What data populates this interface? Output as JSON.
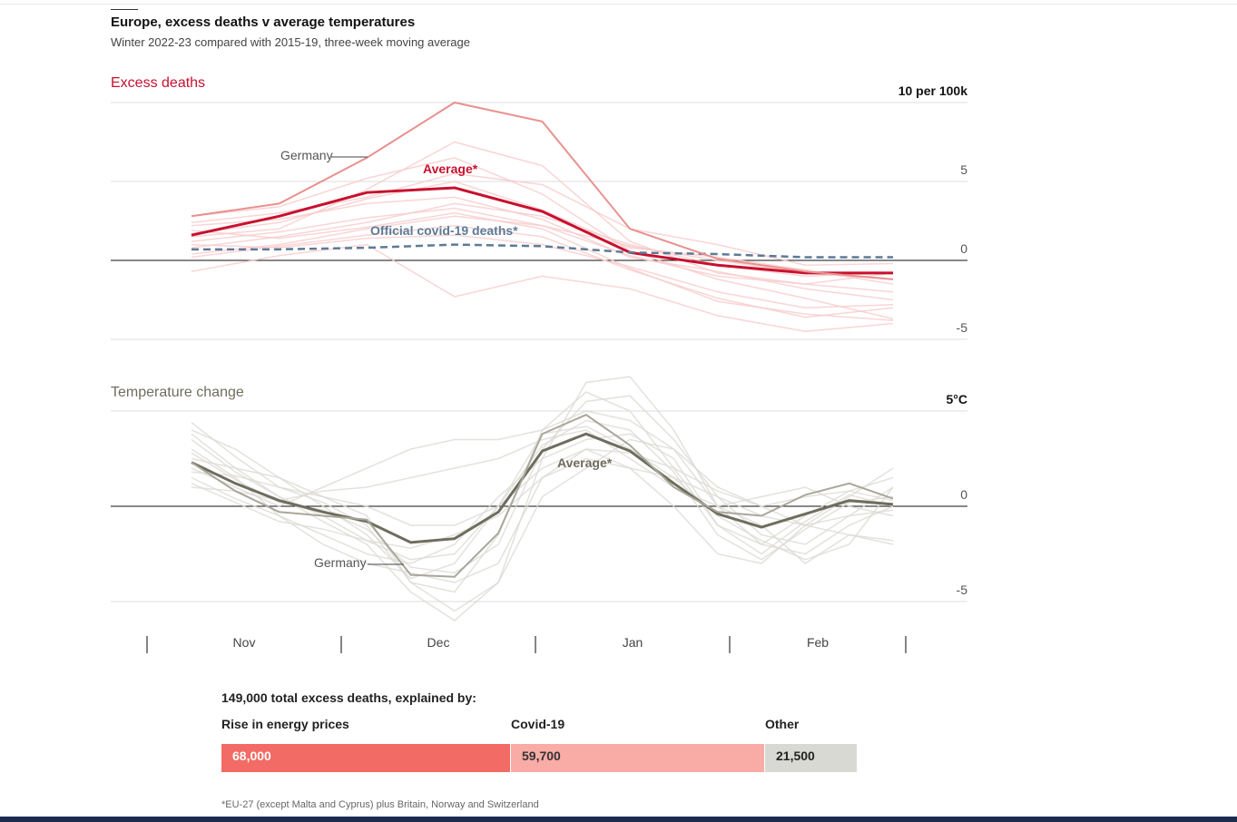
{
  "header": {
    "title": "Europe, excess deaths v average temperatures",
    "subtitle": "Winter 2022-23 compared with 2015-19, three-week moving average"
  },
  "breakdown": {
    "heading": "149,000 total excess deaths, explained by:",
    "segments": [
      {
        "label": "Rise in energy prices",
        "value_text": "68,000",
        "value": 68000,
        "color": "#f26b64",
        "text_color": "#ffffff"
      },
      {
        "label": "Covid-19",
        "value_text": "59,700",
        "value": 59700,
        "color": "#f9aba6",
        "text_color": "#333333"
      },
      {
        "label": "Other",
        "value_text": "21,500",
        "value": 21500,
        "color": "#d9d9d3",
        "text_color": "#222222"
      }
    ]
  },
  "footnote": "*EU-27 (except Malta and Cyprus) plus Britain, Norway and Switzerland",
  "colors": {
    "excess_accent": "#c8102e",
    "excess_bg_lines": "#f8caca",
    "germany_excess": "#e8918f",
    "covid_dashed": "#5d7a96",
    "temp_accent": "#6f6d5e",
    "temp_bg_lines": "#dcdbd4",
    "germany_temp": "#a9a79b"
  },
  "chart_data": [
    {
      "type": "line",
      "title": "Excess deaths",
      "unit_label": "10 per 100k",
      "ylim": [
        -5,
        10
      ],
      "yticks": [
        {
          "value": 10,
          "label": "10 per 100k"
        },
        {
          "value": 5,
          "label": "5"
        },
        {
          "value": 0,
          "label": "0"
        },
        {
          "value": -5,
          "label": "-5"
        }
      ],
      "x_week_range": [
        0,
        16
      ],
      "month_labels": [
        "Nov",
        "Dec",
        "Jan",
        "Feb"
      ],
      "x": [
        0,
        2,
        4,
        6,
        8,
        10,
        12,
        14,
        16
      ],
      "series": [
        {
          "name": "Average*",
          "role": "average",
          "values": [
            1.6,
            2.8,
            4.3,
            4.6,
            3.1,
            0.5,
            -0.3,
            -0.8,
            -0.8
          ]
        },
        {
          "name": "Official covid-19 deaths*",
          "role": "covid",
          "values": [
            0.7,
            0.7,
            0.8,
            1.0,
            0.9,
            0.5,
            0.4,
            0.2,
            0.2
          ]
        },
        {
          "name": "Germany",
          "role": "germany",
          "values": [
            2.8,
            3.6,
            6.5,
            10.0,
            8.8,
            2.0,
            0.1,
            -0.7,
            -1.2
          ]
        }
      ],
      "background_series": [
        [
          1.2,
          1.8,
          2.7,
          3.3,
          2.2,
          0.3,
          -1.0,
          -1.5,
          -2.0
        ],
        [
          2.2,
          2.6,
          3.6,
          4.0,
          2.6,
          0.2,
          -0.7,
          -1.8,
          -2.5
        ],
        [
          0.8,
          1.5,
          2.4,
          3.6,
          2.8,
          1.0,
          -0.3,
          -1.0,
          -0.8
        ],
        [
          1.7,
          2.4,
          3.9,
          5.0,
          3.2,
          0.8,
          0.2,
          -0.6,
          -1.5
        ],
        [
          0.4,
          1.0,
          2.0,
          2.8,
          2.2,
          0.9,
          0.0,
          -0.8,
          -1.2
        ],
        [
          2.8,
          3.4,
          5.2,
          6.5,
          4.2,
          0.6,
          -1.2,
          -2.4,
          -3.7
        ],
        [
          1.0,
          0.8,
          1.4,
          1.6,
          1.0,
          -0.4,
          -2.0,
          -3.0,
          -2.8
        ],
        [
          -0.7,
          0.3,
          1.0,
          -2.3,
          -1.0,
          -1.8,
          -3.5,
          -4.5,
          -4.0
        ],
        [
          1.5,
          2.0,
          4.5,
          7.5,
          6.0,
          1.2,
          -0.8,
          -1.5,
          -0.8
        ],
        [
          2.4,
          3.0,
          4.0,
          5.5,
          4.8,
          2.0,
          1.0,
          -0.3,
          -0.2
        ],
        [
          0.2,
          0.9,
          1.6,
          2.2,
          1.5,
          -0.6,
          -2.4,
          -3.6,
          -3.0
        ],
        [
          1.9,
          1.4,
          2.1,
          3.0,
          2.0,
          -0.5,
          -2.6,
          -3.4,
          -3.8
        ]
      ]
    },
    {
      "type": "line",
      "title": "Temperature change",
      "unit_label": "5°C",
      "ylim": [
        -5,
        5
      ],
      "yticks": [
        {
          "value": 5,
          "label": "5°C"
        },
        {
          "value": 0,
          "label": "0"
        },
        {
          "value": -5,
          "label": "-5"
        }
      ],
      "x_week_range": [
        0,
        16
      ],
      "month_labels": [
        "Nov",
        "Dec",
        "Jan",
        "Feb"
      ],
      "x": [
        0,
        1,
        2,
        3,
        4,
        5,
        6,
        7,
        8,
        9,
        10,
        11,
        12,
        13,
        14,
        15,
        16
      ],
      "series": [
        {
          "name": "Average*",
          "role": "average",
          "values": [
            2.3,
            1.2,
            0.3,
            -0.3,
            -0.8,
            -1.9,
            -1.7,
            -0.3,
            2.9,
            3.8,
            2.9,
            1.2,
            -0.4,
            -1.1,
            -0.4,
            0.3,
            0.1
          ]
        },
        {
          "name": "Germany",
          "role": "germany",
          "values": [
            2.3,
            0.8,
            -0.3,
            -0.5,
            -0.7,
            -3.6,
            -3.7,
            -1.4,
            3.8,
            4.8,
            3.2,
            1.0,
            -0.3,
            -0.5,
            0.6,
            1.2,
            0.4
          ]
        }
      ],
      "background_series": [
        [
          4.4,
          2.6,
          1.0,
          0.2,
          -1.0,
          -4.0,
          -4.5,
          -1.5,
          4.0,
          6.0,
          5.0,
          2.0,
          -1.0,
          -2.5,
          -0.8,
          0.6,
          0.0
        ],
        [
          3.5,
          1.8,
          0.5,
          -0.5,
          -1.8,
          -2.8,
          -2.5,
          0.0,
          3.2,
          4.5,
          4.0,
          1.8,
          -1.5,
          -2.8,
          -1.2,
          0.2,
          0.5
        ],
        [
          1.5,
          0.4,
          -0.5,
          -1.5,
          -2.5,
          -3.0,
          -2.0,
          0.5,
          2.5,
          3.5,
          3.8,
          2.5,
          -1.0,
          -2.0,
          -2.5,
          -1.0,
          0.0
        ],
        [
          2.5,
          2.0,
          1.5,
          0.5,
          -0.5,
          -4.0,
          -5.5,
          -4.0,
          0.5,
          2.0,
          3.5,
          3.0,
          0.0,
          -1.0,
          -3.0,
          -1.5,
          -1.8
        ],
        [
          1.0,
          0.8,
          0.3,
          0.8,
          1.0,
          1.5,
          2.0,
          2.5,
          3.5,
          4.0,
          2.5,
          1.0,
          0.0,
          0.5,
          1.0,
          0.0,
          -0.5
        ],
        [
          3.0,
          1.5,
          -0.5,
          -2.0,
          -3.0,
          -3.5,
          -4.0,
          -3.0,
          1.5,
          3.0,
          2.0,
          0.0,
          -2.5,
          -3.0,
          -1.0,
          0.5,
          2.0
        ],
        [
          2.0,
          1.0,
          0.0,
          1.0,
          2.0,
          3.0,
          3.5,
          3.5,
          4.0,
          5.0,
          4.5,
          3.0,
          1.0,
          0.0,
          -1.0,
          -1.5,
          -2.0
        ],
        [
          3.8,
          2.0,
          0.5,
          -0.8,
          -2.0,
          -4.5,
          -6.0,
          -4.0,
          2.5,
          6.5,
          6.8,
          4.0,
          0.0,
          -2.0,
          -0.5,
          0.8,
          1.5
        ],
        [
          1.2,
          0.2,
          -0.8,
          -1.2,
          -1.8,
          -2.2,
          -1.5,
          -0.5,
          1.5,
          2.5,
          2.0,
          1.5,
          0.5,
          -0.5,
          -1.0,
          -0.5,
          -0.2
        ],
        [
          2.8,
          1.4,
          0.2,
          -0.2,
          -1.2,
          -3.2,
          -3.5,
          -2.0,
          3.0,
          5.5,
          5.8,
          3.5,
          0.5,
          -1.5,
          -2.0,
          -0.5,
          1.0
        ],
        [
          4.0,
          3.0,
          1.5,
          0.0,
          -1.5,
          -3.8,
          -3.0,
          0.0,
          3.8,
          4.2,
          3.0,
          1.5,
          -0.5,
          -1.8,
          -2.8,
          -2.0,
          1.0
        ],
        [
          1.8,
          1.6,
          1.0,
          0.5,
          0.0,
          -1.0,
          -1.0,
          0.0,
          2.0,
          3.0,
          2.8,
          2.0,
          0.8,
          0.0,
          0.5,
          0.8,
          0.3
        ]
      ]
    }
  ]
}
